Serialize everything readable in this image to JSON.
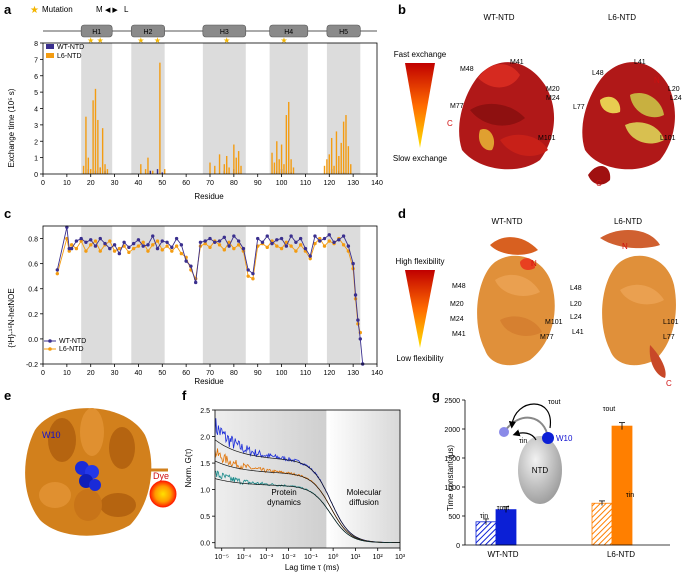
{
  "panel_letters": [
    "a",
    "b",
    "c",
    "d",
    "e",
    "f",
    "g"
  ],
  "colors": {
    "wt": "#3a2f8e",
    "l6": "#f39c12",
    "band": "#dcdcdc",
    "orange": "#ff7f00",
    "blue": "#0b1fd6"
  },
  "panel_a": {
    "mutation_legend": "Mutation",
    "ml_m": "M",
    "ml_arrow": "◀ ▶",
    "ml_l": "L",
    "helices": [
      "H1",
      "H2",
      "H3",
      "H4",
      "H5"
    ],
    "legend": [
      "WT-NTD",
      "L6-NTD"
    ],
    "ylabel": "Exchange time (10⁵ s)",
    "xlabel": "Residue",
    "yticks": [
      "0",
      "1",
      "2",
      "3",
      "4",
      "5",
      "6",
      "7",
      "8"
    ],
    "xticks": [
      "0",
      "10",
      "20",
      "30",
      "40",
      "50",
      "60",
      "70",
      "80",
      "90",
      "100",
      "110",
      "120",
      "130",
      "140"
    ]
  },
  "panel_b": {
    "title_wt": "WT-NTD",
    "title_l6": "L6-NTD",
    "scale_top": "Fast exchange",
    "scale_bottom": "Slow exchange",
    "wt_labels": [
      "M48",
      "M41",
      "M20",
      "M24",
      "M77",
      "M101",
      "C"
    ],
    "l6_labels": [
      "L48",
      "L41",
      "N",
      "L20",
      "L24",
      "L77",
      "L101",
      "C"
    ]
  },
  "panel_c": {
    "ylabel": "{¹H}-¹⁵N-hetNOE",
    "xlabel": "Residue",
    "legend": [
      "WT-NTD",
      "L6-NTD"
    ],
    "yticks": [
      "-0.2",
      "0.0",
      "0.2",
      "0.4",
      "0.6",
      "0.8"
    ],
    "xticks": [
      "0",
      "10",
      "20",
      "30",
      "40",
      "50",
      "60",
      "70",
      "80",
      "90",
      "100",
      "110",
      "120",
      "130",
      "140"
    ]
  },
  "panel_d": {
    "title_wt": "WT-NTD",
    "title_l6": "L6-NTD",
    "scale_top": "High flexibility",
    "scale_bottom": "Low flexibility",
    "wt_labels": [
      "N",
      "M48",
      "M20",
      "M24",
      "M41",
      "M101",
      "M77"
    ],
    "l6_labels": [
      "N",
      "L48",
      "L20",
      "L24",
      "L41",
      "L101",
      "L77",
      "C"
    ]
  },
  "panel_e": {
    "w10": "W10",
    "dye": "Dye"
  },
  "panel_f": {
    "ylabel": "Norm. G(τ)",
    "xlabel": "Lag time τ (ms)",
    "region1": [
      "Protein",
      "dynamics"
    ],
    "region2": [
      "Molecular",
      "diffusion"
    ],
    "yticks": [
      "0.0",
      "0.5",
      "1.0",
      "1.5",
      "2.0",
      "2.5"
    ],
    "xticks": [
      "10⁻⁵",
      "10⁻⁴",
      "10⁻³",
      "10⁻²",
      "10⁻¹",
      "10⁰",
      "10¹",
      "10²",
      "10³"
    ]
  },
  "panel_g": {
    "ylabel": "Time constant (μs)",
    "yticks": [
      "0",
      "500",
      "1000",
      "1500",
      "2000",
      "2500"
    ],
    "groups": [
      "WT-NTD",
      "L6-NTD"
    ],
    "tau_in": "τin",
    "tau_out": "τout",
    "inset_w10": "W10",
    "inset_ntd": "NTD"
  },
  "chart_data": [
    {
      "type": "bar",
      "title": "a",
      "xlabel": "Residue",
      "ylabel": "Exchange time (10^5 s)",
      "ylim": [
        0,
        8
      ],
      "xlim": [
        0,
        140
      ],
      "helix_ranges": [
        [
          16,
          29
        ],
        [
          37,
          51
        ],
        [
          67,
          85
        ],
        [
          95,
          111
        ],
        [
          119,
          133
        ]
      ],
      "mutation_residues": [
        20,
        24,
        41,
        48,
        77,
        101
      ],
      "series": [
        {
          "name": "WT-NTD",
          "x": [
            19,
            22,
            24,
            26,
            45,
            48,
            50,
            76,
            80,
            82,
            98,
            100,
            102,
            104,
            121,
            124,
            126
          ],
          "values": [
            0.3,
            0.2,
            0.4,
            0.2,
            0.2,
            0.3,
            0.1,
            0.2,
            0.3,
            0.1,
            0.2,
            0.3,
            0.2,
            0.1,
            0.3,
            0.2,
            0.1
          ]
        },
        {
          "name": "L6-NTD",
          "x": [
            17,
            18,
            19,
            20,
            21,
            22,
            23,
            24,
            25,
            26,
            27,
            41,
            43,
            44,
            46,
            49,
            51,
            70,
            72,
            74,
            76,
            77,
            78,
            80,
            81,
            82,
            83,
            96,
            97,
            98,
            99,
            100,
            101,
            102,
            103,
            104,
            105,
            118,
            119,
            120,
            121,
            122,
            123,
            124,
            125,
            126,
            127,
            128,
            129
          ],
          "values": [
            0.5,
            3.5,
            1.0,
            0.3,
            4.5,
            5.2,
            3.3,
            0.4,
            2.8,
            0.6,
            0.3,
            0.6,
            0.3,
            1.0,
            0.2,
            6.8,
            0.3,
            0.7,
            0.5,
            1.2,
            0.6,
            1.1,
            0.4,
            1.8,
            1.0,
            1.4,
            0.5,
            1.3,
            0.7,
            2.0,
            0.9,
            1.8,
            0.6,
            3.6,
            4.4,
            0.9,
            0.4,
            0.5,
            0.9,
            1.2,
            2.2,
            0.5,
            2.6,
            1.1,
            1.9,
            3.2,
            3.6,
            1.7,
            0.6
          ]
        }
      ]
    },
    {
      "type": "line",
      "title": "c",
      "xlabel": "Residue",
      "ylabel": "{1H}-15N-hetNOE",
      "ylim": [
        -0.2,
        0.9
      ],
      "xlim": [
        0,
        140
      ],
      "series": [
        {
          "name": "WT-NTD",
          "x": [
            6,
            10,
            11,
            12,
            14,
            16,
            18,
            20,
            22,
            24,
            26,
            28,
            30,
            32,
            34,
            36,
            38,
            40,
            42,
            44,
            46,
            48,
            50,
            52,
            54,
            56,
            58,
            60,
            62,
            64,
            66,
            68,
            70,
            72,
            74,
            76,
            78,
            80,
            82,
            84,
            86,
            88,
            90,
            92,
            94,
            96,
            98,
            100,
            102,
            104,
            106,
            108,
            110,
            112,
            114,
            116,
            118,
            120,
            122,
            124,
            126,
            128,
            130,
            131,
            132,
            133,
            134
          ],
          "values": [
            0.55,
            0.89,
            0.72,
            0.72,
            0.78,
            0.8,
            0.77,
            0.79,
            0.74,
            0.8,
            0.76,
            0.72,
            0.75,
            0.68,
            0.77,
            0.73,
            0.76,
            0.79,
            0.74,
            0.75,
            0.82,
            0.72,
            0.78,
            0.77,
            0.73,
            0.8,
            0.75,
            0.62,
            0.58,
            0.45,
            0.77,
            0.78,
            0.8,
            0.77,
            0.78,
            0.81,
            0.74,
            0.82,
            0.78,
            0.72,
            0.55,
            0.52,
            0.8,
            0.77,
            0.82,
            0.76,
            0.79,
            0.8,
            0.74,
            0.82,
            0.77,
            0.8,
            0.72,
            0.66,
            0.82,
            0.78,
            0.8,
            0.83,
            0.77,
            0.79,
            0.82,
            0.74,
            0.6,
            0.35,
            0.15,
            0.0,
            -0.2
          ]
        },
        {
          "name": "L6-NTD",
          "x": [
            6,
            10,
            11,
            12,
            14,
            16,
            18,
            20,
            22,
            24,
            26,
            28,
            30,
            32,
            34,
            36,
            38,
            40,
            42,
            44,
            46,
            48,
            50,
            52,
            54,
            56,
            58,
            60,
            62,
            64,
            66,
            68,
            70,
            72,
            74,
            76,
            78,
            80,
            82,
            84,
            86,
            88,
            90,
            92,
            94,
            96,
            98,
            100,
            102,
            104,
            106,
            108,
            110,
            112,
            114,
            116,
            118,
            120,
            122,
            124,
            126,
            128,
            130,
            131,
            132,
            133
          ],
          "values": [
            0.52,
            0.8,
            0.7,
            0.75,
            0.72,
            0.78,
            0.7,
            0.75,
            0.78,
            0.7,
            0.75,
            0.78,
            0.7,
            0.72,
            0.74,
            0.69,
            0.72,
            0.74,
            0.77,
            0.7,
            0.75,
            0.78,
            0.71,
            0.74,
            0.7,
            0.74,
            0.68,
            0.65,
            0.55,
            0.48,
            0.74,
            0.76,
            0.73,
            0.78,
            0.75,
            0.71,
            0.77,
            0.72,
            0.75,
            0.7,
            0.5,
            0.48,
            0.74,
            0.76,
            0.73,
            0.78,
            0.74,
            0.72,
            0.77,
            0.74,
            0.7,
            0.75,
            0.7,
            0.64,
            0.76,
            0.8,
            0.74,
            0.78,
            0.76,
            0.8,
            0.75,
            0.7,
            0.56,
            0.32,
            0.12,
            0.05
          ]
        }
      ]
    },
    {
      "type": "line",
      "title": "f",
      "xlabel": "Lag time τ (ms)",
      "ylabel": "Norm. G(τ)",
      "xscale": "log",
      "xlim": [
        5e-06,
        1000
      ],
      "ylim": [
        -0.1,
        2.5
      ],
      "shaded_range": [
        5e-06,
        0.5
      ],
      "series": [
        {
          "name": "blue",
          "start": 2.2,
          "plateau": 1.55,
          "noise": 0.2
        },
        {
          "name": "orange",
          "start": 1.7,
          "plateau": 1.3,
          "noise": 0.12
        },
        {
          "name": "teal",
          "start": 1.3,
          "plateau": 1.07,
          "noise": 0.1
        }
      ]
    },
    {
      "type": "bar",
      "title": "g",
      "ylabel": "Time constant (μs)",
      "ylim": [
        0,
        2500
      ],
      "categories": [
        "WT-NTD",
        "L6-NTD"
      ],
      "series": [
        {
          "name": "τin",
          "values": [
            400,
            720
          ],
          "errors": [
            50,
            40
          ]
        },
        {
          "name": "τout",
          "values": [
            610,
            2050
          ],
          "errors": [
            50,
            60
          ]
        }
      ]
    }
  ]
}
